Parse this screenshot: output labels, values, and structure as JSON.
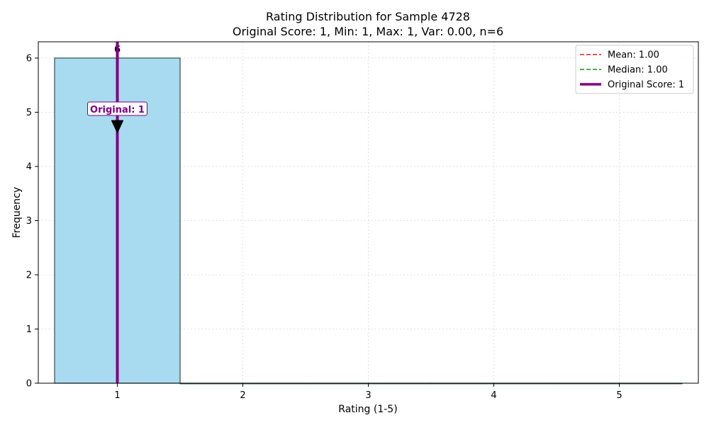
{
  "chart_data": {
    "type": "bar",
    "title": "Rating Distribution for Sample 4728",
    "subtitle": "Original Score: 1, Min: 1, Max: 1, Var: 0.00, n=6",
    "xlabel": "Rating (1-5)",
    "ylabel": "Frequency",
    "categories": [
      1,
      2,
      3,
      4,
      5
    ],
    "values": [
      6,
      0,
      0,
      0,
      0
    ],
    "bar_labels": [
      "6"
    ],
    "xlim": [
      0.37,
      5.63
    ],
    "ylim": [
      0,
      6.3
    ],
    "xticks": [
      "1",
      "2",
      "3",
      "4",
      "5"
    ],
    "yticks": [
      "0",
      "1",
      "2",
      "3",
      "4",
      "5",
      "6"
    ],
    "grid": true,
    "legend_position": "top-right",
    "reference_lines": {
      "mean": {
        "label": "Mean: 1.00",
        "value": 1.0,
        "color": "#e31a1c",
        "style": "dashed"
      },
      "median": {
        "label": "Median: 1.00",
        "value": 1.0,
        "color": "#1a8c1a",
        "style": "dashed"
      },
      "original": {
        "label": "Original Score: 1",
        "value": 1,
        "color": "#800080",
        "style": "solid"
      }
    },
    "annotation": {
      "text": "Original: 1",
      "x": 1,
      "y": 4.65,
      "text_y": 5.0,
      "color": "#800080"
    },
    "colors": {
      "bar_fill": "#a8dbef",
      "bar_edge": "#2f4f4f",
      "grid": "#d8d8d8"
    }
  }
}
